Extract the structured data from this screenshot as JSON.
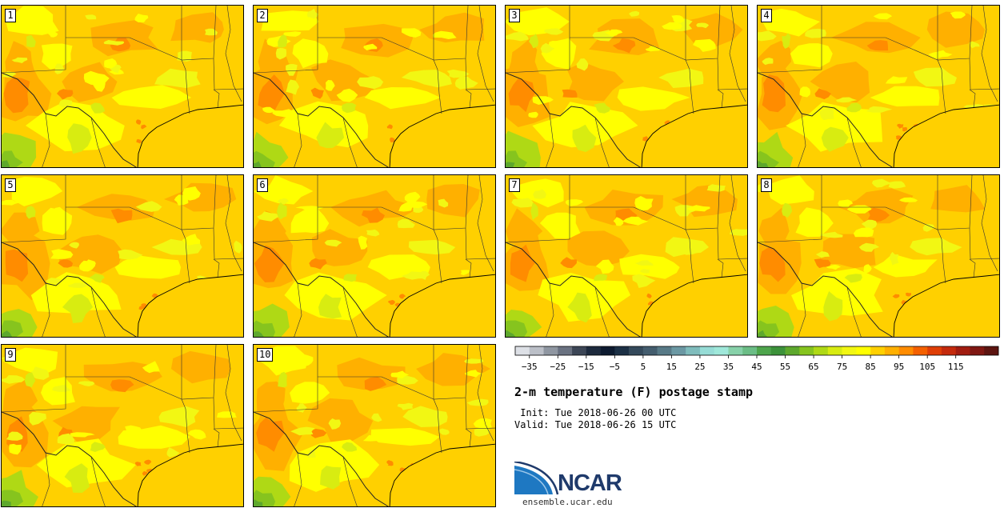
{
  "panels": [
    {
      "label": "1"
    },
    {
      "label": "2"
    },
    {
      "label": "3"
    },
    {
      "label": "4"
    },
    {
      "label": "5"
    },
    {
      "label": "6"
    },
    {
      "label": "7"
    },
    {
      "label": "8"
    },
    {
      "label": "9"
    },
    {
      "label": "10"
    }
  ],
  "colorbar": {
    "colors": [
      "#dde0e6",
      "#bbbfc7",
      "#8f96a1",
      "#6a7281",
      "#3c4656",
      "#1d2a3d",
      "#0d1b30",
      "#1c3045",
      "#34495b",
      "#445d6e",
      "#587a87",
      "#6b98a3",
      "#7fbcbc",
      "#96dcd6",
      "#9fe8da",
      "#87d1a9",
      "#6bbd86",
      "#4ea54c",
      "#3c923a",
      "#5da82d",
      "#86c41e",
      "#afd915",
      "#d8ec11",
      "#f2f713",
      "#ffff00",
      "#ffd000",
      "#ffb000",
      "#ff8c00",
      "#f46000",
      "#df3e06",
      "#c42a0c",
      "#a11c10",
      "#7f1712",
      "#5c1410"
    ],
    "tick_labels": [
      "−35",
      "−25",
      "−15",
      "−5",
      "5",
      "15",
      "25",
      "35",
      "45",
      "55",
      "65",
      "75",
      "85",
      "95",
      "105",
      "115"
    ]
  },
  "title": "2-m temperature (F) postage stamp",
  "init": " Init: Tue 2018-06-26 00 UTC",
  "valid": "Valid: Tue 2018-06-26 15 UTC",
  "logo": {
    "name": "NCAR",
    "url_text": "ensemble.ucar.edu"
  }
}
